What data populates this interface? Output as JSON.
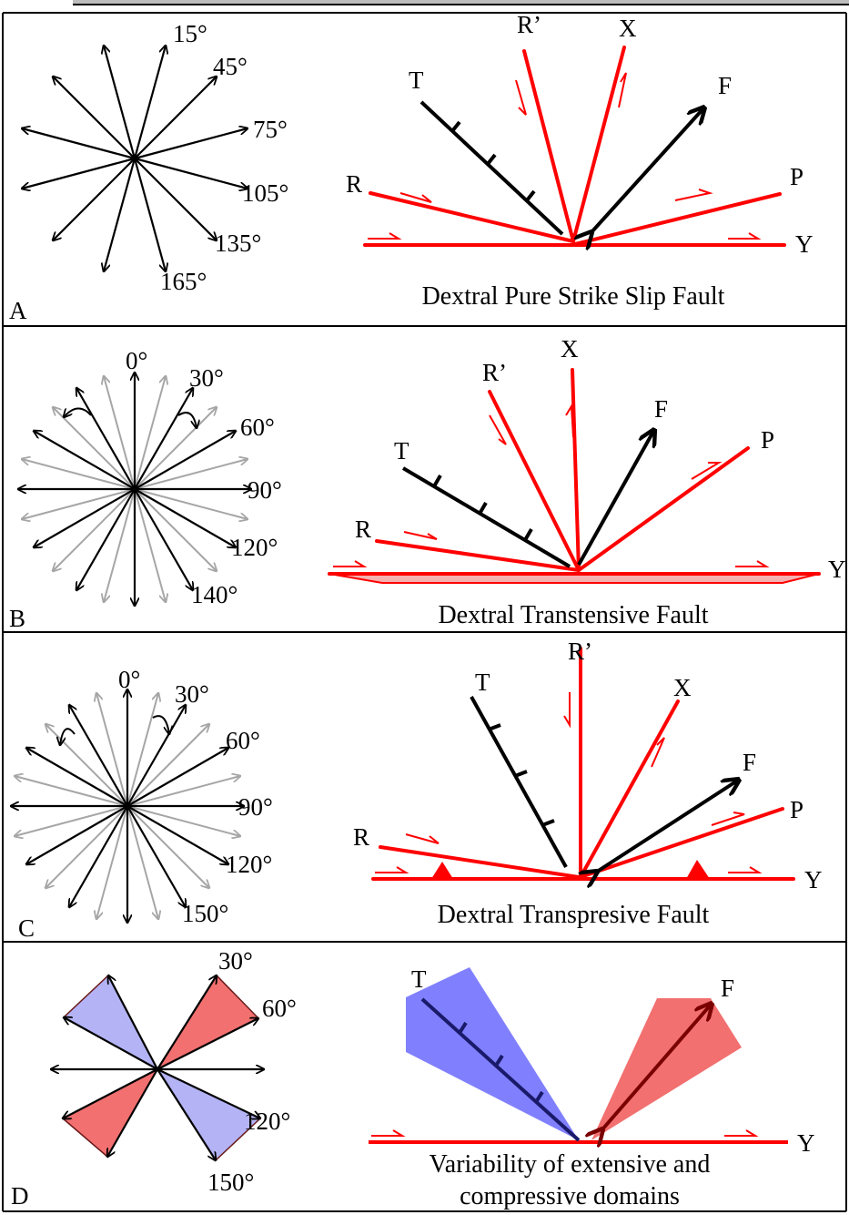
{
  "panels": {
    "A": {
      "letter": "A",
      "caption": "Dextral Pure Strike Slip Fault",
      "rose_labels": [
        "15°",
        "45°",
        "75°",
        "105°",
        "135°",
        "165°"
      ],
      "fault_labels": {
        "R": "R",
        "T": "T",
        "R_prime": "R’",
        "X": "X",
        "F": "F",
        "P": "P",
        "Y": "Y"
      }
    },
    "B": {
      "letter": "B",
      "caption": "Dextral Transtensive Fault",
      "rose_labels": [
        "0°",
        "30°",
        "60°",
        "90°",
        "120°",
        "140°"
      ],
      "fault_labels": {
        "R": "R",
        "T": "T",
        "R_prime": "R’",
        "X": "X",
        "F": "F",
        "P": "P",
        "Y": "Y"
      }
    },
    "C": {
      "letter": "C",
      "caption": "Dextral Transpresive Fault",
      "rose_labels": [
        "0°",
        "30°",
        "60°",
        "90°",
        "120°",
        "150°"
      ],
      "fault_labels": {
        "R": "R",
        "T": "T",
        "R_prime": "R’",
        "X": "X",
        "F": "F",
        "P": "P",
        "Y": "Y"
      }
    },
    "D": {
      "letter": "D",
      "caption_line1": "Variability of extensive and",
      "caption_line2": "compressive domains",
      "rose_labels": [
        "30°",
        "60°",
        "120°",
        "150°"
      ],
      "fault_labels": {
        "T": "T",
        "F": "F",
        "Y": "Y"
      }
    }
  },
  "colors": {
    "black": "#000000",
    "red": "#ff0000",
    "gray": "#a6a6a6",
    "blue_fill": "#8080ff",
    "light_blue_fill": "#b3b3f5",
    "red_fill": "#f27070",
    "pink_fill": "#f5b0b0"
  }
}
